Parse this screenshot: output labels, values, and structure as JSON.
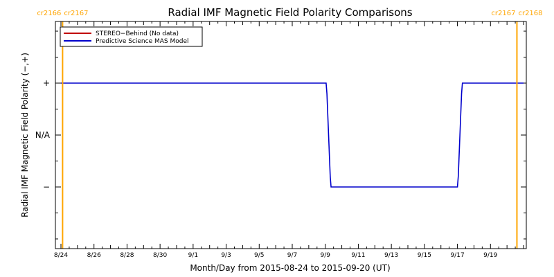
{
  "chart_data": {
    "type": "line",
    "title": "Radial IMF Magnetic Field Polarity Comparisons",
    "xlabel": "Month/Day from 2015-08-24 to 2015-09-20 (UT)",
    "ylabel": "Radial IMF Magnetic Field Polarity (−,+)",
    "x_start_date": "2015-08-24",
    "xlim_days": [
      0,
      28
    ],
    "ylim": [
      -2,
      2
    ],
    "x_ticks": [
      {
        "day": 0,
        "label": "8/24"
      },
      {
        "day": 2,
        "label": "8/26"
      },
      {
        "day": 4,
        "label": "8/28"
      },
      {
        "day": 6,
        "label": "8/30"
      },
      {
        "day": 8,
        "label": "9/1"
      },
      {
        "day": 10,
        "label": "9/3"
      },
      {
        "day": 12,
        "label": "9/5"
      },
      {
        "day": 14,
        "label": "9/7"
      },
      {
        "day": 16,
        "label": "9/9"
      },
      {
        "day": 18,
        "label": "9/11"
      },
      {
        "day": 20,
        "label": "9/13"
      },
      {
        "day": 22,
        "label": "9/15"
      },
      {
        "day": 24,
        "label": "9/17"
      },
      {
        "day": 26,
        "label": "9/19"
      }
    ],
    "y_ticks": [
      {
        "value": 1,
        "label": "+"
      },
      {
        "value": 0,
        "label": "N/A"
      },
      {
        "value": -1,
        "label": "−"
      }
    ],
    "carrington_markers": [
      {
        "day": 0.1,
        "label_left": "cr2166",
        "label_right": "cr2167",
        "color": "#ffa500"
      },
      {
        "day": 27.6,
        "label_left": "cr2167",
        "label_right": "cr2168",
        "color": "#ffa500"
      }
    ],
    "legend": {
      "position": "top-left",
      "entries": [
        {
          "name": "STEREO−Behind (No data)",
          "color": "#c00000"
        },
        {
          "name": "Predictive Science MAS Model",
          "color": "#0000cc"
        }
      ]
    },
    "series": [
      {
        "name": "Predictive Science MAS Model",
        "color": "#0000cc",
        "points": [
          {
            "x": 0.0,
            "y": 1
          },
          {
            "x": 16.05,
            "y": 1
          },
          {
            "x": 16.1,
            "y": 0.8
          },
          {
            "x": 16.15,
            "y": 0.4
          },
          {
            "x": 16.2,
            "y": 0.0
          },
          {
            "x": 16.25,
            "y": -0.4
          },
          {
            "x": 16.3,
            "y": -0.8
          },
          {
            "x": 16.35,
            "y": -1
          },
          {
            "x": 24.0,
            "y": -1
          },
          {
            "x": 24.05,
            "y": -0.8
          },
          {
            "x": 24.1,
            "y": -0.4
          },
          {
            "x": 24.15,
            "y": 0.0
          },
          {
            "x": 24.2,
            "y": 0.4
          },
          {
            "x": 24.25,
            "y": 0.8
          },
          {
            "x": 24.3,
            "y": 1
          },
          {
            "x": 28.0,
            "y": 1
          }
        ]
      },
      {
        "name": "STEREO−Behind (No data)",
        "color": "#c00000",
        "points": []
      }
    ]
  }
}
